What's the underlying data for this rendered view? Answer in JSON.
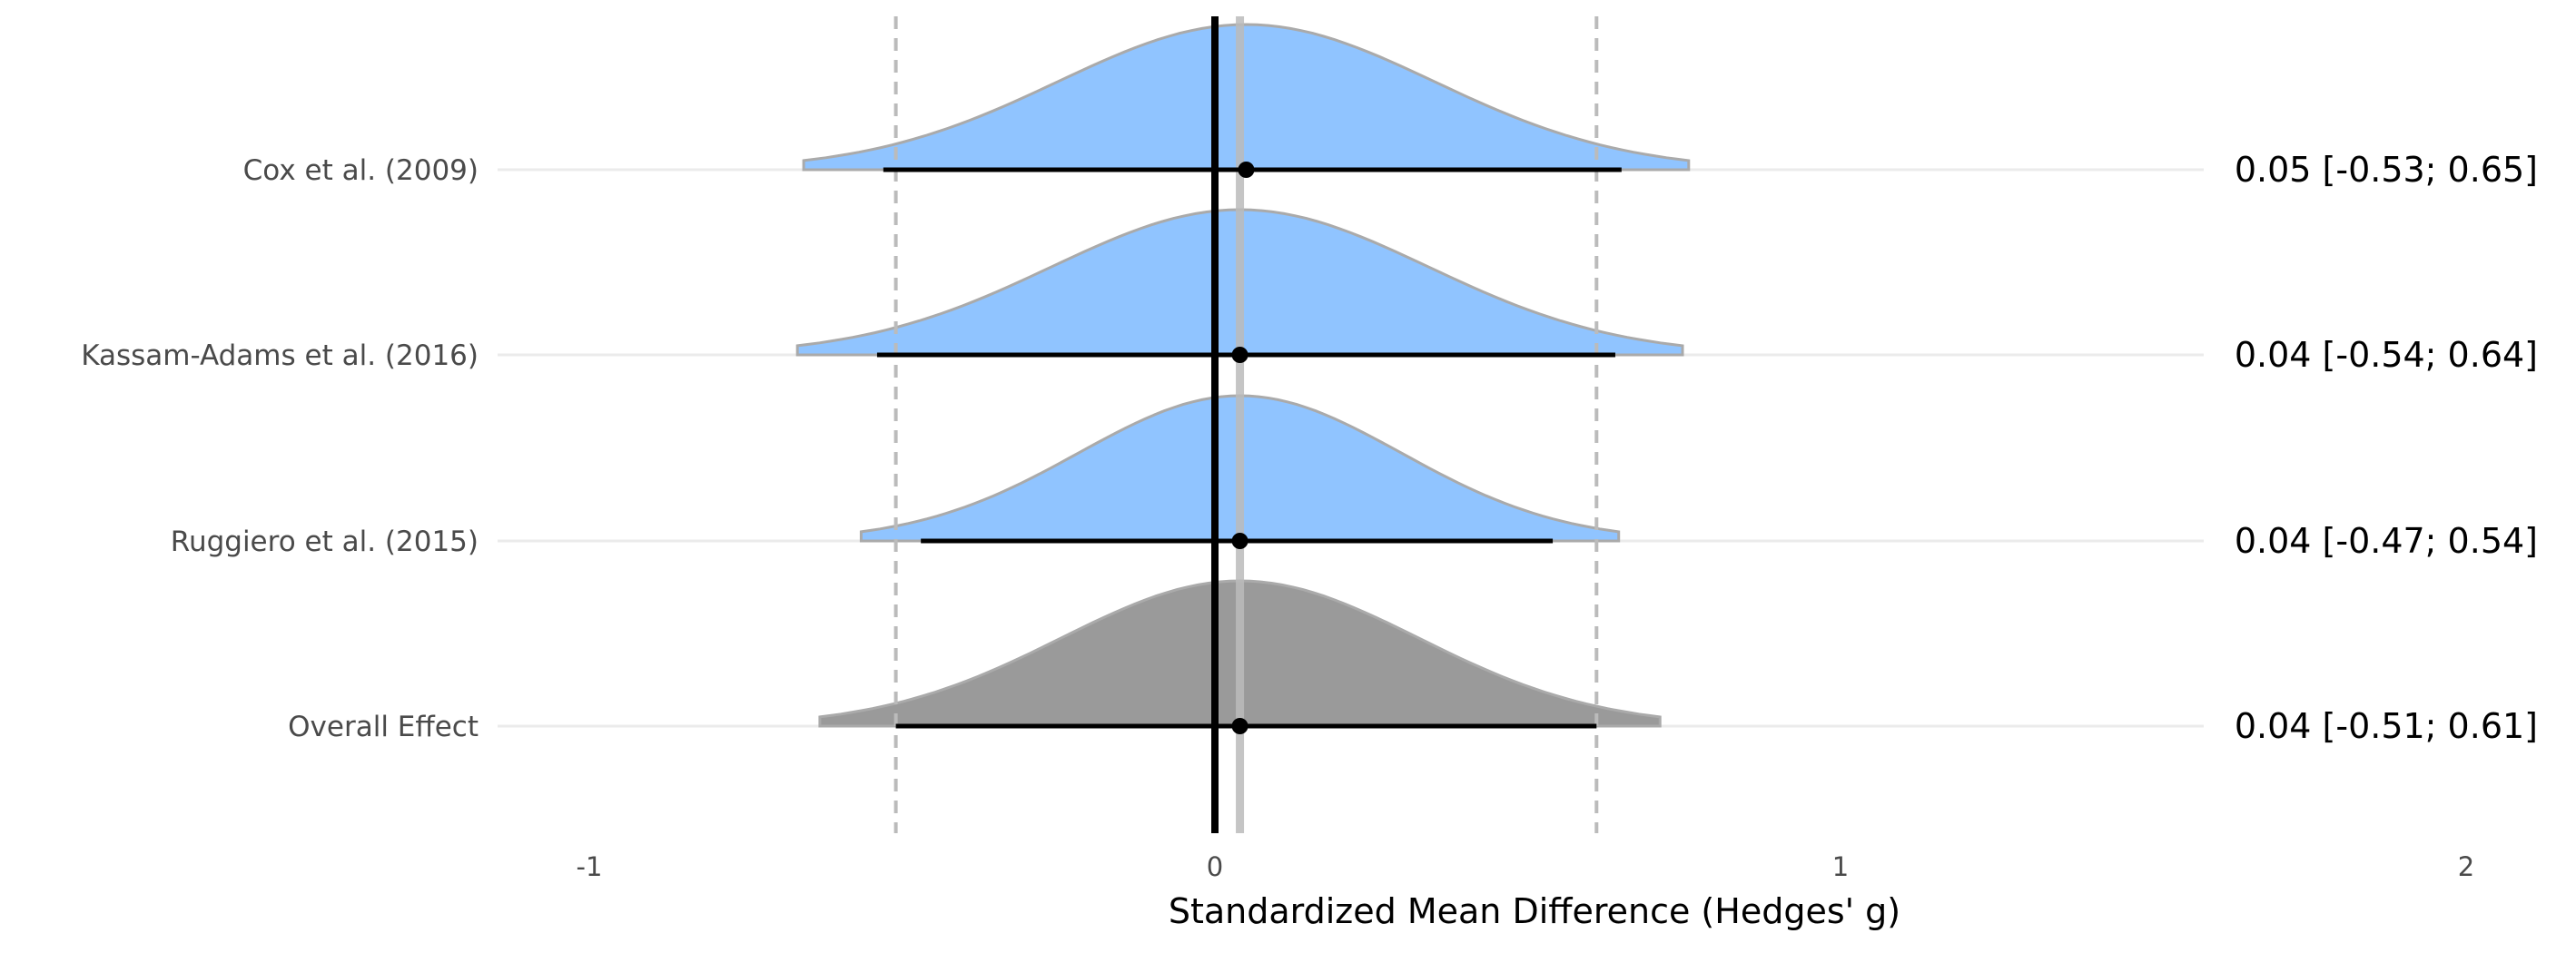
{
  "chart_data": {
    "type": "forest-density",
    "xlabel": "Standardized Mean Difference (Hedges' g)",
    "xlim": [
      -1,
      2
    ],
    "x_ticks": [
      -1,
      0,
      1,
      2
    ],
    "x_tick_labels": [
      "-1",
      "0",
      "1",
      "2"
    ],
    "null_line": 0,
    "pooled_estimate_line": 0.04,
    "pooled_ci_lines": [
      -0.51,
      0.61
    ],
    "colors": {
      "study_density": "#90c4ff",
      "overall_density": "#9a9a9a",
      "density_outline": "#aaaaaa",
      "ci_line": "#000000",
      "null_line": "#000000",
      "estimate_line": "#bbbbbb",
      "row_line": "#ebebeb"
    },
    "rows": [
      {
        "label": "Cox et al. (2009)",
        "estimate": 0.05,
        "ci_low": -0.53,
        "ci_high": 0.65,
        "value_text": "0.05 [-0.53; 0.65]",
        "kind": "study"
      },
      {
        "label": "Kassam-Adams et al. (2016)",
        "estimate": 0.04,
        "ci_low": -0.54,
        "ci_high": 0.64,
        "value_text": "0.04 [-0.54; 0.64]",
        "kind": "study"
      },
      {
        "label": "Ruggiero et al. (2015)",
        "estimate": 0.04,
        "ci_low": -0.47,
        "ci_high": 0.54,
        "value_text": "0.04 [-0.47; 0.54]",
        "kind": "study"
      },
      {
        "label": "Overall Effect",
        "estimate": 0.04,
        "ci_low": -0.51,
        "ci_high": 0.61,
        "value_text": "0.04 [-0.51; 0.61]",
        "kind": "overall"
      }
    ]
  }
}
